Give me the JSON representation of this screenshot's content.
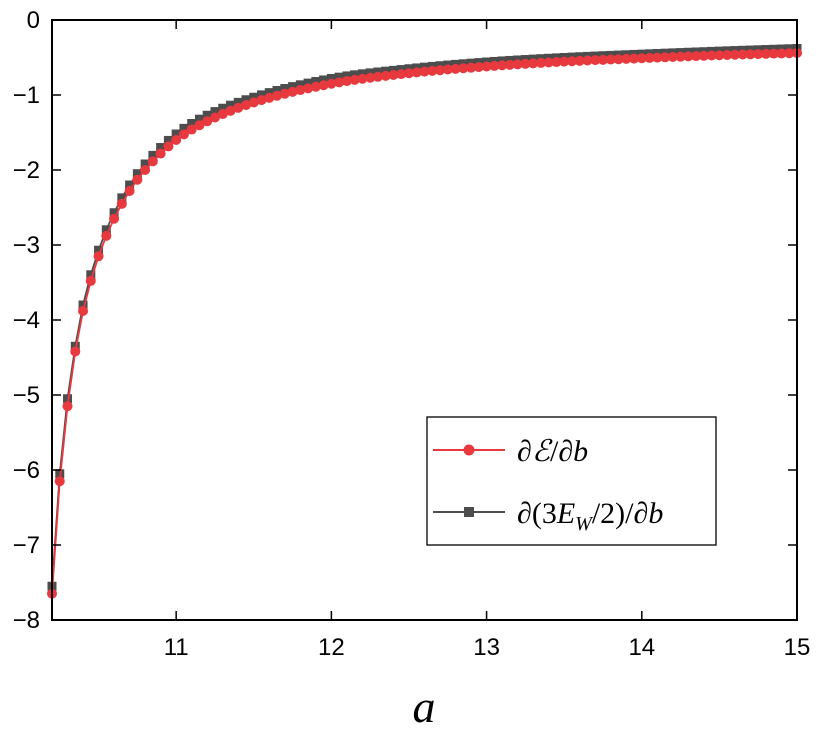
{
  "chart_data": {
    "type": "line",
    "title": "",
    "xlabel": "a",
    "ylabel": "",
    "xlim": [
      10.2,
      15
    ],
    "ylim": [
      -8,
      0
    ],
    "xticks": [
      11,
      12,
      13,
      14,
      15
    ],
    "xtick_labels": [
      "11",
      "12",
      "13",
      "14",
      "15"
    ],
    "yticks": [
      0,
      -1,
      -2,
      -3,
      -4,
      -5,
      -6,
      -7,
      -8
    ],
    "ytick_labels": [
      "0",
      "−1",
      "−2",
      "−3",
      "−4",
      "−5",
      "−6",
      "−7",
      "−8"
    ],
    "grid": false,
    "legend_position": "lower-right",
    "series": [
      {
        "name": "∂ℰ/∂b",
        "legend": {
          "pre": "∂",
          "script": "ℰ",
          "mid": "/∂",
          "post": "b"
        },
        "color": "#e8393f",
        "marker": "circle",
        "x": [
          10.2,
          10.25,
          10.3,
          10.35,
          10.4,
          10.5,
          10.6,
          10.7,
          10.8,
          11.0,
          11.2,
          11.5,
          12.0,
          12.5,
          13.0,
          13.5,
          14.0,
          14.5,
          15.0
        ],
        "values": [
          -7.65,
          -6.15,
          -5.15,
          -4.42,
          -3.88,
          -3.15,
          -2.65,
          -2.28,
          -2.0,
          -1.6,
          -1.35,
          -1.1,
          -0.85,
          -0.71,
          -0.62,
          -0.555,
          -0.51,
          -0.47,
          -0.44
        ]
      },
      {
        "name": "∂(3E_W/2)/∂b",
        "legend": {
          "pre": "∂(3",
          "e": "E",
          "sub": "W",
          "mid": "/2)/∂",
          "post": "b"
        },
        "color": "#4d4d4d",
        "marker": "square",
        "x": [
          10.2,
          10.25,
          10.3,
          10.35,
          10.4,
          10.5,
          10.6,
          10.7,
          10.8,
          11.0,
          11.2,
          11.5,
          12.0,
          12.5,
          13.0,
          13.5,
          14.0,
          14.5,
          15.0
        ],
        "values": [
          -7.55,
          -6.05,
          -5.05,
          -4.35,
          -3.8,
          -3.07,
          -2.57,
          -2.2,
          -1.92,
          -1.52,
          -1.27,
          -1.03,
          -0.78,
          -0.65,
          -0.56,
          -0.5,
          -0.455,
          -0.415,
          -0.38
        ]
      }
    ]
  }
}
